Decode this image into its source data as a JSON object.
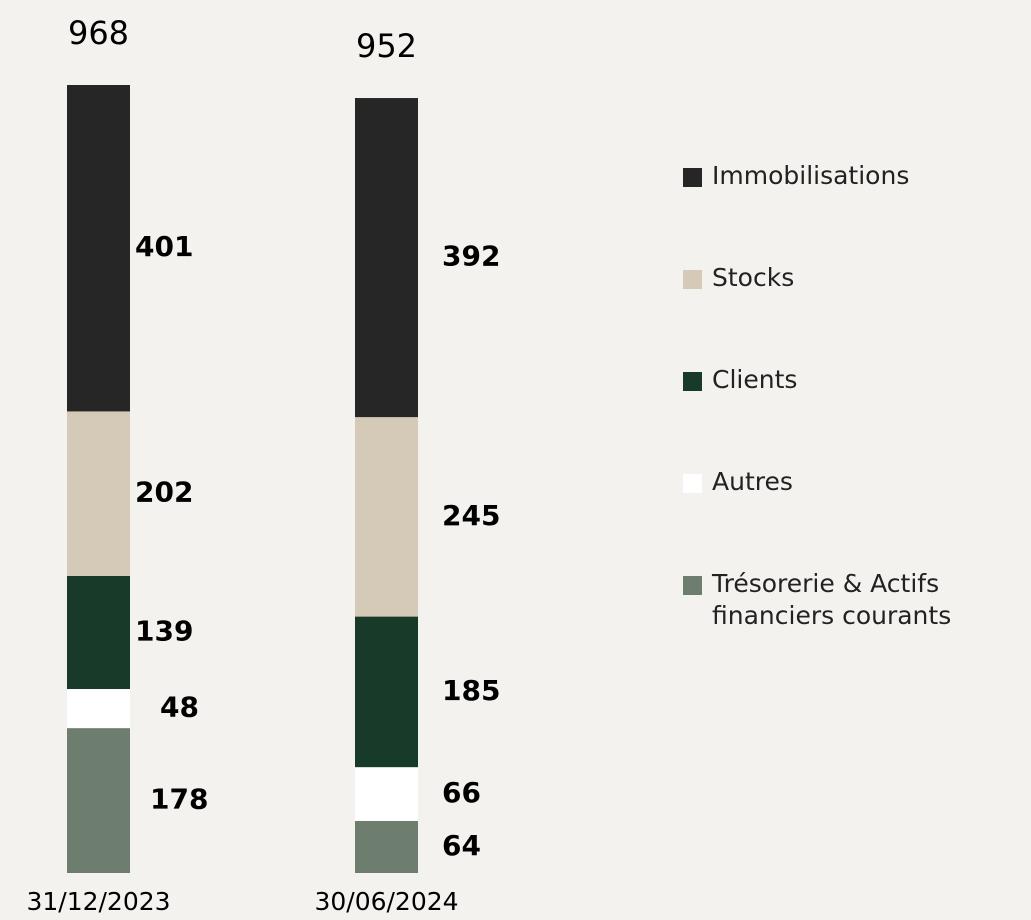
{
  "chart_data": {
    "type": "stacked_bar",
    "categories": [
      "31/12/2023",
      "30/06/2024"
    ],
    "totals": [
      968,
      952
    ],
    "series": [
      {
        "name": "Trésorerie & Actifs financiers courants",
        "color": "#6d7d6e",
        "values": [
          178,
          64
        ]
      },
      {
        "name": "Autres",
        "color": "#ffffff",
        "values": [
          48,
          66
        ]
      },
      {
        "name": "Clients",
        "color": "#183a29",
        "values": [
          139,
          185
        ]
      },
      {
        "name": "Stocks",
        "color": "#d5cab7",
        "values": [
          202,
          245
        ]
      },
      {
        "name": "Immobilisations",
        "color": "#262626",
        "values": [
          401,
          392
        ]
      }
    ]
  }
}
